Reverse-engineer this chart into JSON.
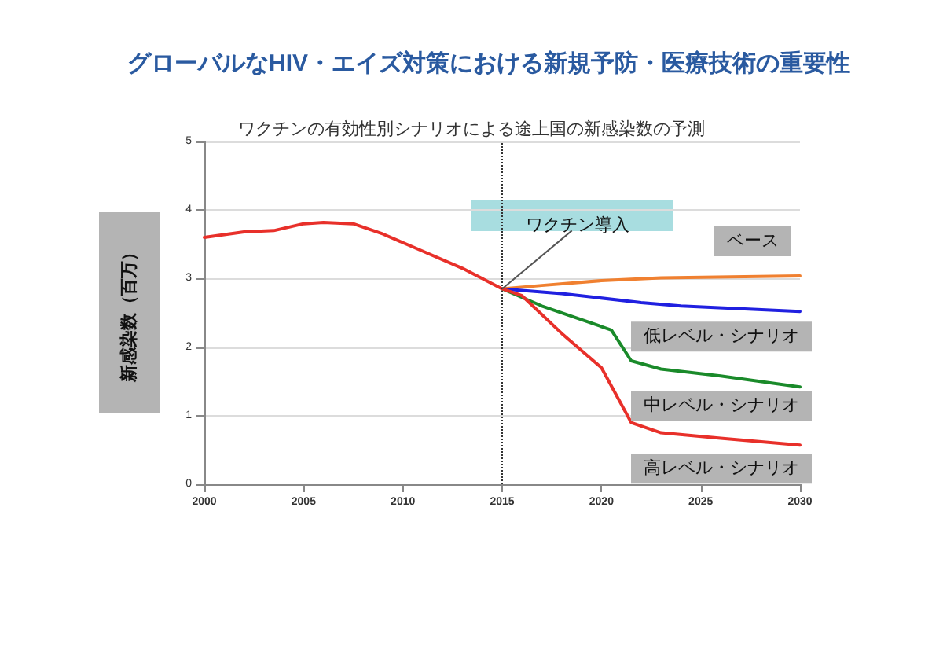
{
  "chart_data": {
    "type": "line",
    "title": "グローバルなHIV・エイズ対策における新規予防・医療技術の重要性",
    "subtitle": "ワクチンの有効性別シナリオによる途上国の新感染数の予測",
    "ylabel": "新感染数（百万）",
    "xlim": [
      2000,
      2030
    ],
    "xticks": [
      2000,
      2005,
      2010,
      2015,
      2020,
      2025,
      2030
    ],
    "ylim": [
      0,
      5
    ],
    "yticks": [
      0,
      1,
      2,
      3,
      4,
      5
    ],
    "grid": "y",
    "marker": "none",
    "line_style": "solid",
    "ref_lines": [
      {
        "axis": "x",
        "value": 2015,
        "color": "#333333",
        "line_style": "dotted"
      }
    ],
    "annotations": [
      {
        "text": "ワクチン導入",
        "x": 2015,
        "y": 2.85
      }
    ],
    "series": [
      {
        "name": "ベース",
        "color": "#f08030",
        "x": [
          2015,
          2017,
          2020,
          2023,
          2030
        ],
        "values": [
          2.85,
          2.9,
          2.97,
          3.01,
          3.04
        ]
      },
      {
        "name": "低レベル・シナリオ",
        "color": "#2020e0",
        "x": [
          2015,
          2018,
          2022,
          2024,
          2030
        ],
        "values": [
          2.85,
          2.78,
          2.65,
          2.6,
          2.52
        ]
      },
      {
        "name": "中レベル・シナリオ",
        "color": "#1a8a2a",
        "x": [
          2015,
          2017,
          2020.5,
          2021.5,
          2023,
          2026,
          2030
        ],
        "values": [
          2.85,
          2.6,
          2.25,
          1.8,
          1.68,
          1.58,
          1.42
        ]
      },
      {
        "name": "高レベル・シナリオ",
        "color": "#e8302a",
        "x": [
          2000,
          2002,
          2003.5,
          2005,
          2006,
          2007.5,
          2009,
          2011,
          2013,
          2015,
          2016,
          2018,
          2020,
          2021.5,
          2023,
          2026,
          2030
        ],
        "values": [
          3.6,
          3.68,
          3.7,
          3.8,
          3.82,
          3.8,
          3.65,
          3.4,
          3.15,
          2.85,
          2.75,
          2.2,
          1.7,
          0.9,
          0.75,
          0.67,
          0.57
        ]
      }
    ]
  }
}
